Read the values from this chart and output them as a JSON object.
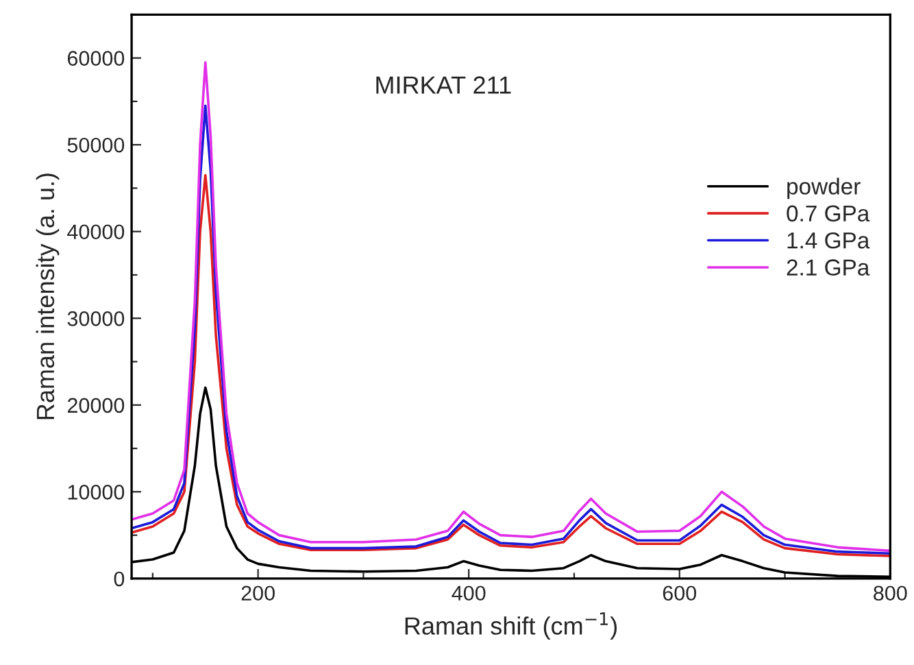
{
  "chart_data": {
    "type": "line",
    "xlabel": "Raman shift (cm$^{−1}$)",
    "ylabel": "Raman intensity (a. u.)",
    "annotations": [
      "MIRKAT 211"
    ],
    "x": [
      80,
      100,
      120,
      130,
      140,
      145,
      150,
      155,
      160,
      170,
      180,
      190,
      200,
      220,
      250,
      300,
      350,
      380,
      395,
      410,
      430,
      460,
      490,
      505,
      516,
      530,
      560,
      600,
      620,
      640,
      660,
      680,
      700,
      750,
      800
    ],
    "series": [
      {
        "name": "powder",
        "color": "#000000",
        "values": [
          1900,
          2200,
          3000,
          5500,
          13000,
          19000,
          22000,
          19500,
          13000,
          6000,
          3500,
          2200,
          1700,
          1300,
          900,
          800,
          900,
          1300,
          2000,
          1500,
          1000,
          900,
          1200,
          2000,
          2700,
          2000,
          1200,
          1100,
          1600,
          2700,
          2000,
          1200,
          700,
          300,
          200
        ]
      },
      {
        "name": "0.7 GPa",
        "color": "#e02020",
        "values": [
          5300,
          6000,
          7500,
          10000,
          25000,
          40000,
          46500,
          40000,
          28000,
          15000,
          8500,
          6000,
          5200,
          4000,
          3300,
          3300,
          3500,
          4500,
          6200,
          5000,
          3800,
          3600,
          4200,
          6000,
          7200,
          5800,
          4000,
          4000,
          5500,
          7700,
          6500,
          4500,
          3500,
          2800,
          2600
        ]
      },
      {
        "name": "1.4 GPa",
        "color": "#1a1ad8",
        "values": [
          5800,
          6500,
          8000,
          11000,
          29000,
          46000,
          54500,
          47000,
          33000,
          17000,
          9500,
          6500,
          5600,
          4300,
          3500,
          3500,
          3700,
          4800,
          6700,
          5400,
          4100,
          3900,
          4600,
          6700,
          8000,
          6400,
          4400,
          4400,
          6100,
          8500,
          7100,
          5000,
          3900,
          3100,
          2900
        ]
      },
      {
        "name": "2.1 GPa",
        "color": "#e030e8",
        "values": [
          6800,
          7500,
          9000,
          12500,
          32000,
          50000,
          59500,
          51000,
          36000,
          19000,
          11000,
          7500,
          6500,
          5000,
          4200,
          4200,
          4500,
          5500,
          7700,
          6300,
          5000,
          4800,
          5500,
          7800,
          9200,
          7500,
          5400,
          5500,
          7200,
          10000,
          8300,
          6000,
          4600,
          3600,
          3200
        ]
      }
    ],
    "xlim": [
      80,
      800
    ],
    "ylim": [
      0,
      65000
    ],
    "xticks": [
      {
        "value": 100,
        "label": null
      },
      200,
      {
        "value": 300,
        "label": null
      },
      400,
      {
        "value": 500,
        "label": null
      },
      600,
      {
        "value": 700,
        "label": null
      },
      800
    ],
    "yticks": [
      0,
      {
        "value": 5000,
        "label": null
      },
      10000,
      {
        "value": 15000,
        "label": null
      },
      20000,
      {
        "value": 25000,
        "label": null
      },
      30000,
      {
        "value": 35000,
        "label": null
      },
      40000,
      {
        "value": 45000,
        "label": null
      },
      50000,
      {
        "value": 55000,
        "label": null
      },
      60000
    ],
    "grid": false,
    "legend": "center right",
    "marker": "none",
    "line_style": "solid"
  }
}
